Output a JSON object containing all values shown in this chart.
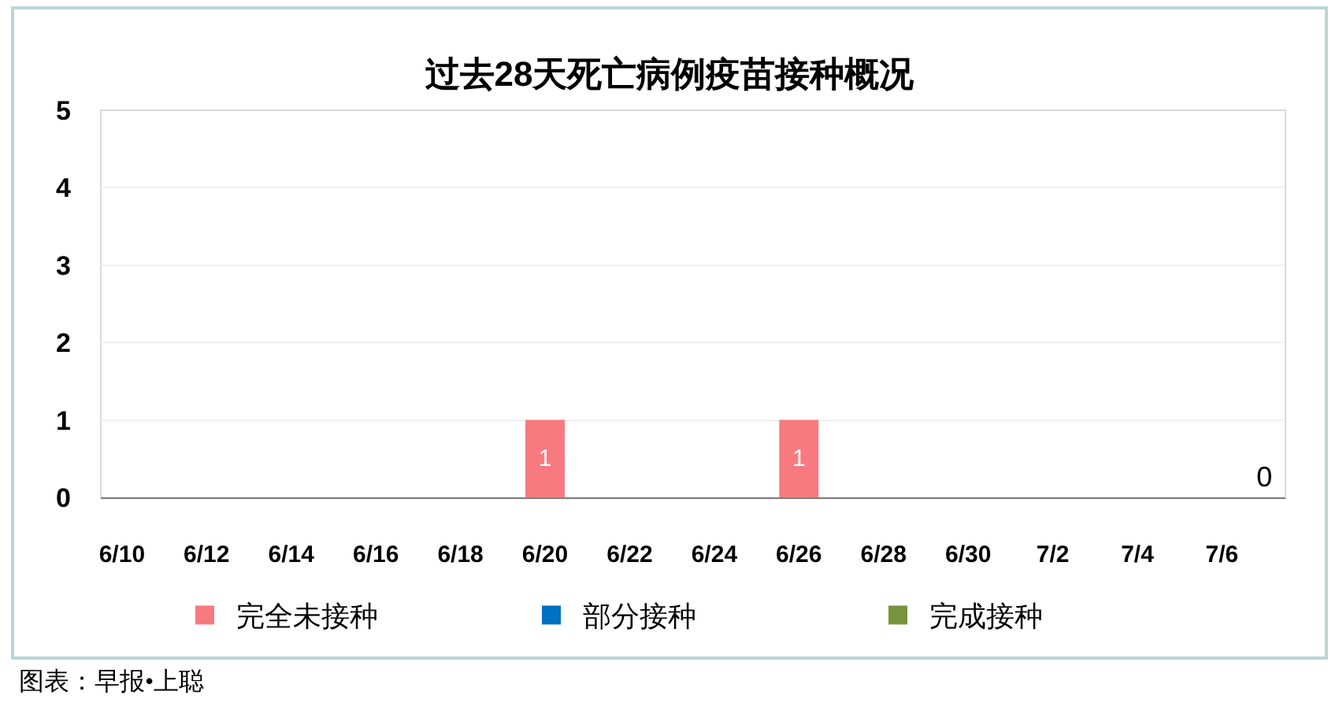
{
  "chart_data": {
    "type": "bar",
    "title": "过去28天死亡病例疫苗接种概况",
    "categories": [
      "6/10",
      null,
      "6/12",
      null,
      "6/14",
      null,
      "6/16",
      null,
      "6/18",
      null,
      "6/20",
      null,
      "6/22",
      null,
      "6/24",
      null,
      "6/26",
      null,
      "6/28",
      null,
      "6/30",
      null,
      "7/2",
      null,
      "7/4",
      null,
      "7/6",
      null
    ],
    "series": [
      {
        "name": "完全未接种",
        "color": "#f67a80",
        "values": [
          0,
          0,
          0,
          0,
          0,
          0,
          0,
          0,
          0,
          0,
          1,
          0,
          0,
          0,
          0,
          0,
          1,
          0,
          0,
          0,
          0,
          0,
          0,
          0,
          0,
          0,
          0,
          0
        ],
        "value_labels": [
          null,
          null,
          null,
          null,
          null,
          null,
          null,
          null,
          null,
          null,
          "1",
          null,
          null,
          null,
          null,
          null,
          "1",
          null,
          null,
          null,
          null,
          null,
          null,
          null,
          null,
          null,
          null,
          null
        ]
      },
      {
        "name": "部分接种",
        "color": "#0070c0",
        "values": [
          0,
          0,
          0,
          0,
          0,
          0,
          0,
          0,
          0,
          0,
          0,
          0,
          0,
          0,
          0,
          0,
          0,
          0,
          0,
          0,
          0,
          0,
          0,
          0,
          0,
          0,
          0,
          0
        ]
      },
      {
        "name": "完成接种",
        "color": "#77933c",
        "values": [
          0,
          0,
          0,
          0,
          0,
          0,
          0,
          0,
          0,
          0,
          0,
          0,
          0,
          0,
          0,
          0,
          0,
          0,
          0,
          0,
          0,
          0,
          0,
          0,
          0,
          0,
          0,
          0
        ],
        "value_labels": [
          null,
          null,
          null,
          null,
          null,
          null,
          null,
          null,
          null,
          null,
          null,
          null,
          null,
          null,
          null,
          null,
          null,
          null,
          null,
          null,
          null,
          null,
          null,
          null,
          null,
          null,
          null,
          "0"
        ]
      }
    ],
    "stacked": true,
    "ylim": [
      0,
      5
    ],
    "yticks": [
      0,
      1,
      2,
      3,
      4,
      5
    ],
    "grid": "y",
    "legend": "bottom",
    "annotations": [
      "图表：早报•上聪"
    ]
  }
}
